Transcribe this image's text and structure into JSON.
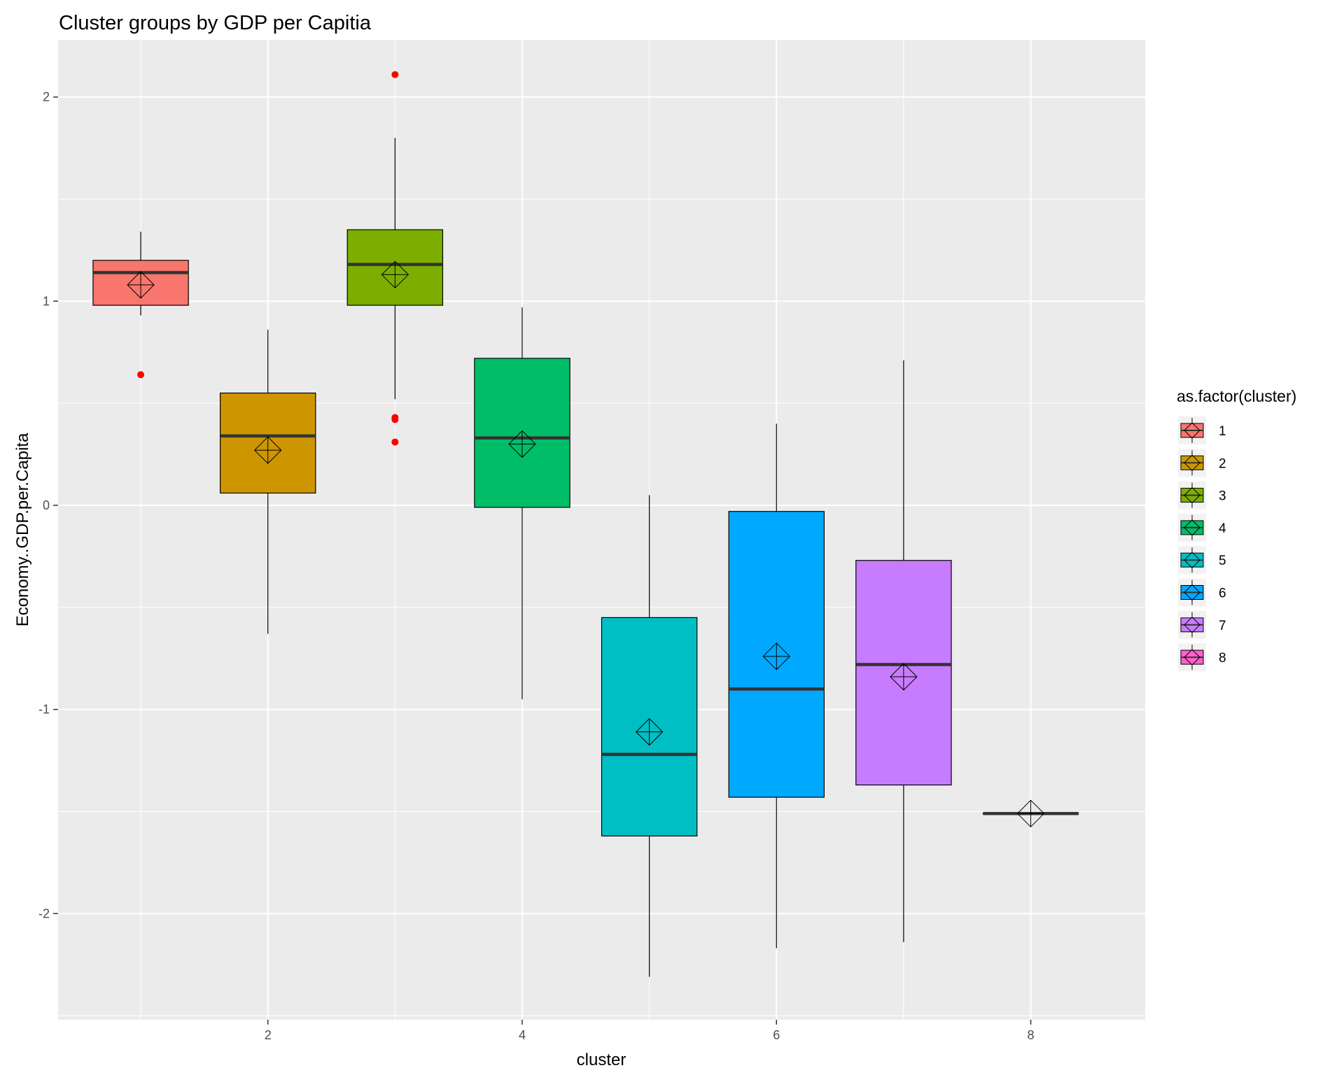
{
  "chart_data": {
    "type": "boxplot",
    "title": "Cluster groups by GDP per Capitia",
    "xlabel": "cluster",
    "ylabel": "Economy..GDP.per.Capita",
    "xlim": [
      0.35,
      8.9
    ],
    "ylim": [
      -2.52,
      2.28
    ],
    "x_ticks": [
      2,
      4,
      6,
      8
    ],
    "x_tick_labels": [
      "2",
      "4",
      "6",
      "8"
    ],
    "y_ticks": [
      -2,
      -1,
      0,
      1,
      2
    ],
    "y_tick_labels": [
      "-2",
      "-1",
      "0",
      "1",
      "2"
    ],
    "grid": true,
    "legend": {
      "title": "as.factor(cluster)",
      "placement": "right"
    },
    "outlier_color": "#ff0000",
    "series": [
      {
        "name": "1",
        "cluster": 1,
        "color": "#F8766D",
        "whisker_low": 0.93,
        "q1": 0.98,
        "median": 1.14,
        "q3": 1.2,
        "whisker_high": 1.34,
        "mean": 1.08,
        "outliers": [
          0.64
        ]
      },
      {
        "name": "2",
        "cluster": 2,
        "color": "#CD9600",
        "whisker_low": -0.63,
        "q1": 0.06,
        "median": 0.34,
        "q3": 0.55,
        "whisker_high": 0.86,
        "mean": 0.27,
        "outliers": []
      },
      {
        "name": "3",
        "cluster": 3,
        "color": "#7CAE00",
        "whisker_low": 0.52,
        "q1": 0.98,
        "median": 1.18,
        "q3": 1.35,
        "whisker_high": 1.8,
        "mean": 1.13,
        "outliers": [
          2.11,
          0.43,
          0.42,
          0.31
        ]
      },
      {
        "name": "4",
        "cluster": 4,
        "color": "#00BE67",
        "whisker_low": -0.95,
        "q1": -0.01,
        "median": 0.33,
        "q3": 0.72,
        "whisker_high": 0.97,
        "mean": 0.3,
        "outliers": []
      },
      {
        "name": "5",
        "cluster": 5,
        "color": "#00BFC4",
        "whisker_low": -2.31,
        "q1": -1.62,
        "median": -1.22,
        "q3": -0.55,
        "whisker_high": 0.05,
        "mean": -1.11,
        "outliers": []
      },
      {
        "name": "6",
        "cluster": 6,
        "color": "#00A9FF",
        "whisker_low": -2.17,
        "q1": -1.43,
        "median": -0.9,
        "q3": -0.03,
        "whisker_high": 0.4,
        "mean": -0.74,
        "outliers": []
      },
      {
        "name": "7",
        "cluster": 7,
        "color": "#C77CFF",
        "whisker_low": -2.14,
        "q1": -1.37,
        "median": -0.78,
        "q3": -0.27,
        "whisker_high": 0.71,
        "mean": -0.84,
        "outliers": []
      },
      {
        "name": "8",
        "cluster": 8,
        "color": "#FF61CC",
        "whisker_low": -1.51,
        "q1": -1.51,
        "median": -1.51,
        "q3": -1.51,
        "whisker_high": -1.51,
        "mean": -1.51,
        "outliers": []
      }
    ]
  }
}
